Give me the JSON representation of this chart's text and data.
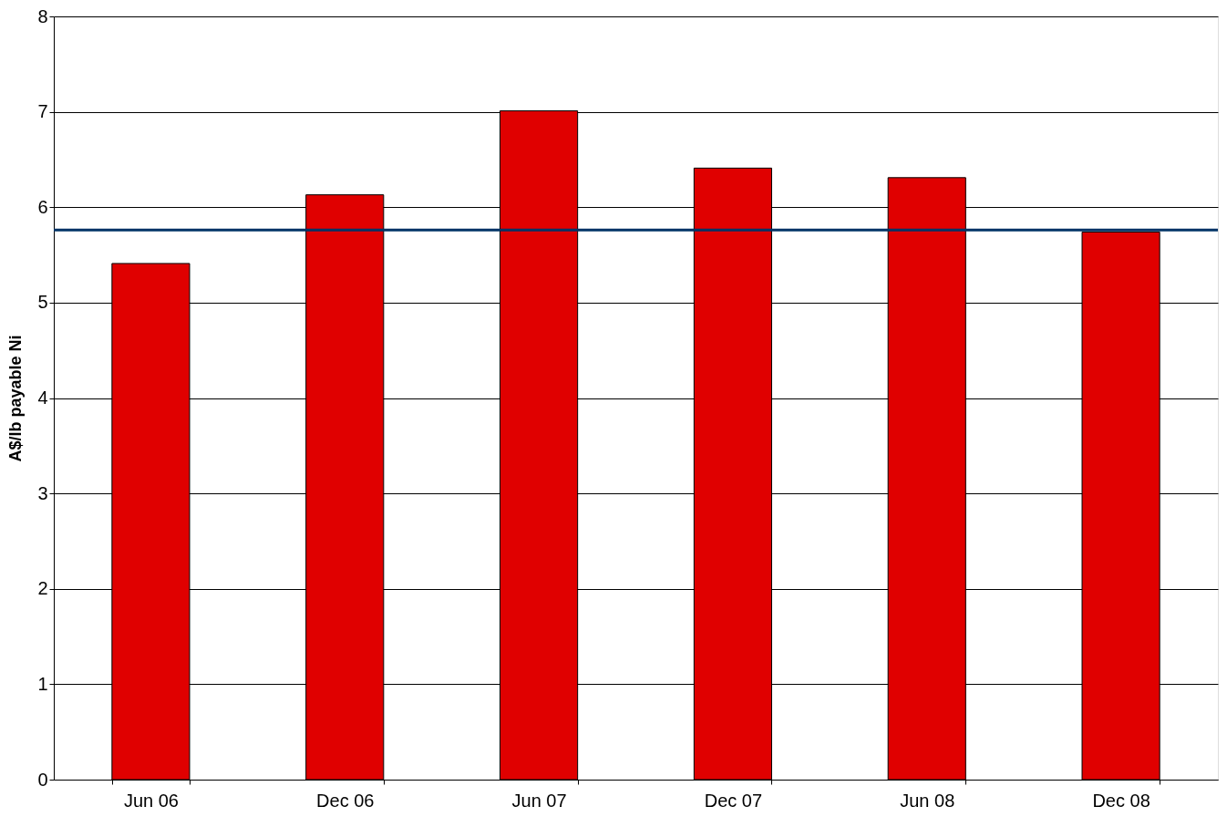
{
  "chart_data": {
    "type": "bar",
    "ylabel": "A$/lb payable Ni",
    "categories": [
      "Jun 06",
      "Dec 06",
      "Jun 07",
      "Dec 07",
      "Jun 08",
      "Dec 08"
    ],
    "values": [
      5.41,
      6.13,
      7.01,
      6.41,
      6.31,
      5.74
    ],
    "color": "#e00000",
    "ylim": [
      0,
      8
    ],
    "yticks": [
      0,
      1,
      2,
      3,
      4,
      5,
      6,
      7,
      8
    ],
    "grid": "y",
    "ref_lines": [
      {
        "axis": "y",
        "value": 5.76,
        "color": "#003366"
      }
    ]
  }
}
